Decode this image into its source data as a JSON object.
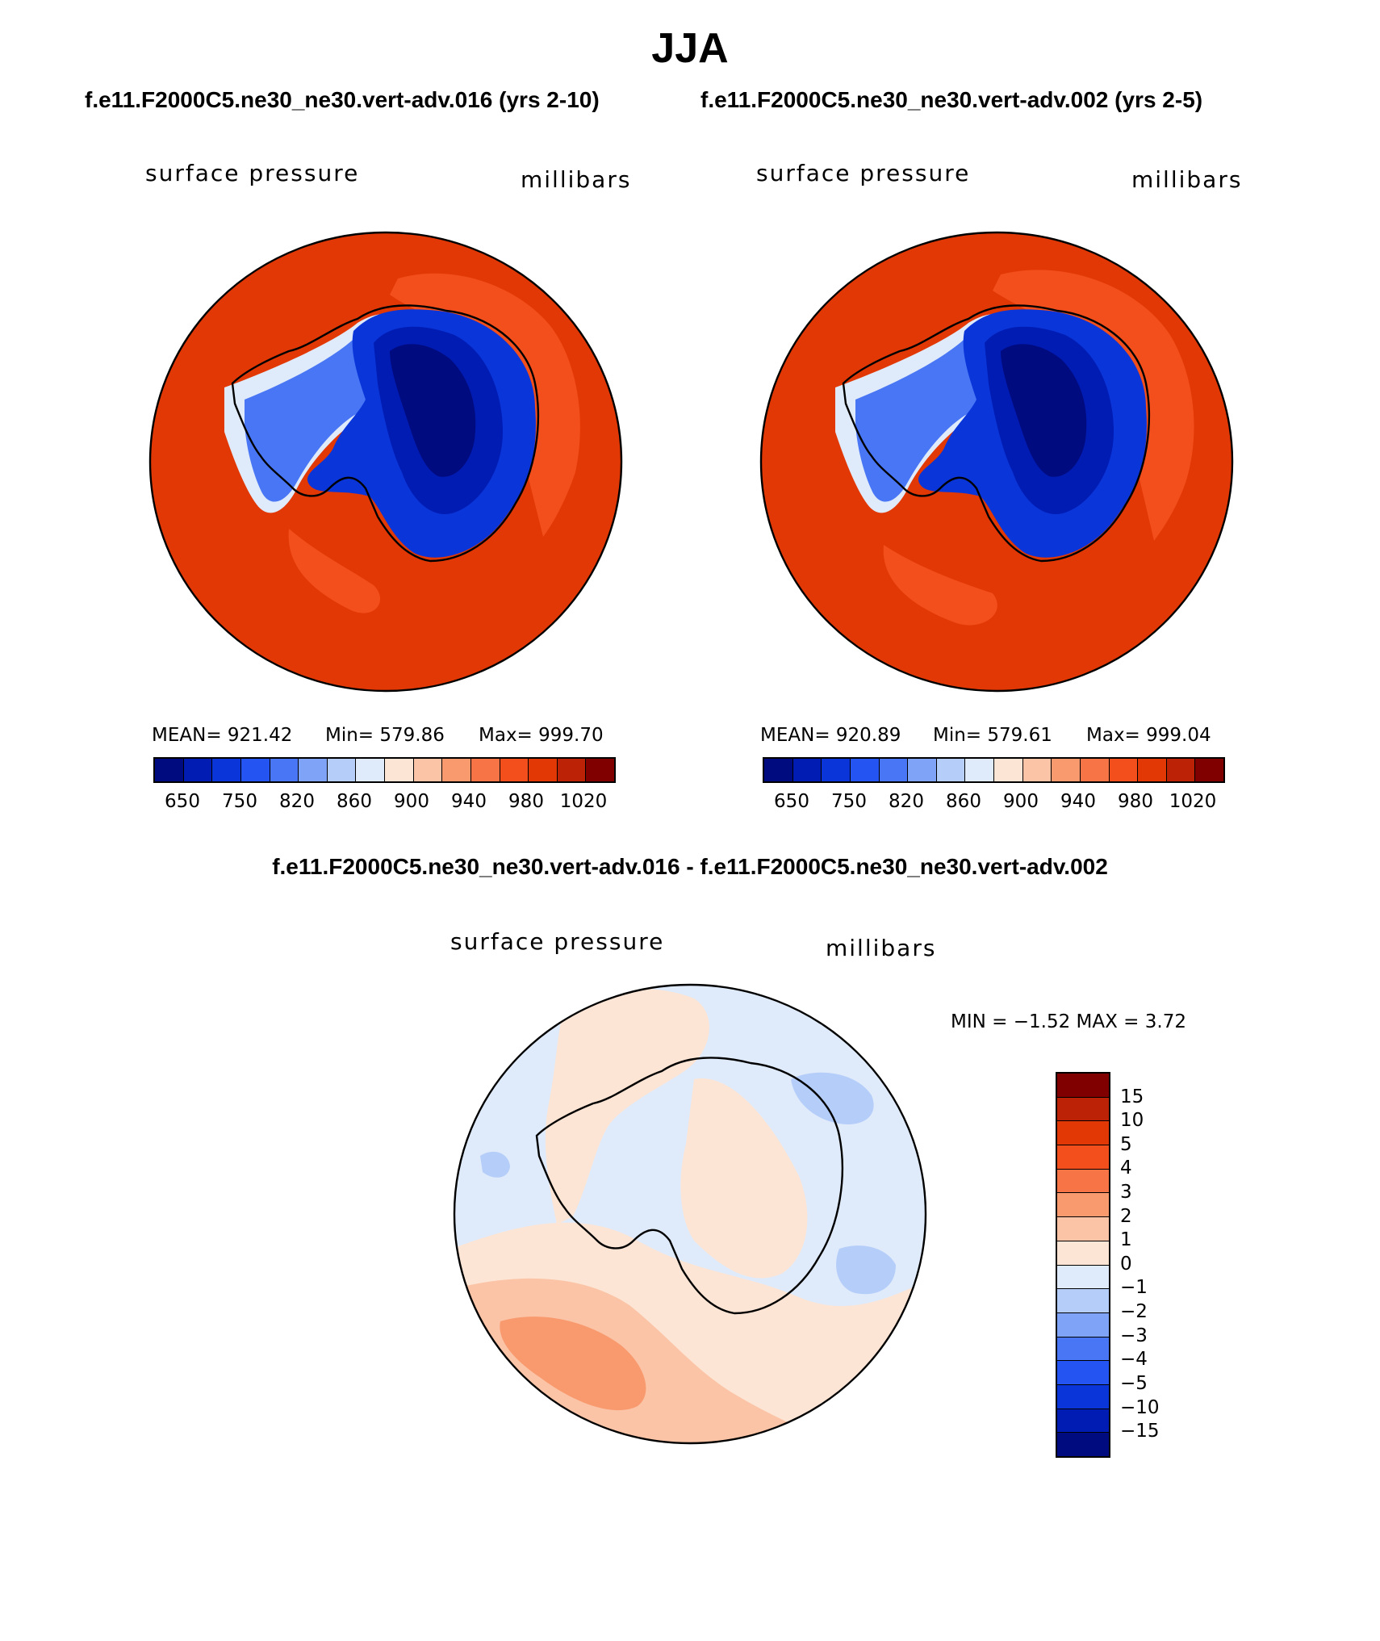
{
  "figure": {
    "title": "JJA",
    "case_left": "f.e11.F2000C5.ne30_ne30.vert-adv.016 (yrs 2-10)",
    "case_right": "f.e11.F2000C5.ne30_ne30.vert-adv.002 (yrs 2-5)",
    "diff_title": "f.e11.F2000C5.ne30_ne30.vert-adv.016 - f.e11.F2000C5.ne30_ne30.vert-adv.002"
  },
  "colors": {
    "abs_levels": [
      "#000b80",
      "#001cb3",
      "#0a35d9",
      "#2455f2",
      "#4876f5",
      "#7ea3f7",
      "#b5cdf9",
      "#dfebfb",
      "#fde5d5",
      "#fbc4a6",
      "#f9996e",
      "#f77447",
      "#f24f1c",
      "#e23805",
      "#bb2206",
      "#800000"
    ],
    "diff_levels": [
      "#000b80",
      "#001cb3",
      "#0a35d9",
      "#2455f2",
      "#4876f5",
      "#7ea3f7",
      "#b5cdf9",
      "#dfebfb",
      "#fde5d5",
      "#fbc4a6",
      "#f9996e",
      "#f77447",
      "#f24f1c",
      "#e23805",
      "#bb2206",
      "#800000"
    ]
  },
  "chart_data": [
    {
      "type": "map",
      "projection": "south polar stereographic",
      "title": "f.e11.F2000C5.ne30_ne30.vert-adv.016 (yrs 2-10)",
      "variable": "surface pressure",
      "units": "millibars",
      "mean_label": "MEAN=  921.42",
      "min_label": "Min=  579.86",
      "max_label": "Max=  999.70",
      "stats": {
        "mean": 921.42,
        "min": 579.86,
        "max": 999.7
      },
      "colorbar_ticks": [
        "650",
        "750",
        "820",
        "860",
        "900",
        "940",
        "980",
        "1020"
      ]
    },
    {
      "type": "map",
      "projection": "south polar stereographic",
      "title": "f.e11.F2000C5.ne30_ne30.vert-adv.002 (yrs 2-5)",
      "variable": "surface pressure",
      "units": "millibars",
      "mean_label": "MEAN=  920.89",
      "min_label": "Min=  579.61",
      "max_label": "Max=  999.04",
      "stats": {
        "mean": 920.89,
        "min": 579.61,
        "max": 999.04
      },
      "colorbar_ticks": [
        "650",
        "750",
        "820",
        "860",
        "900",
        "940",
        "980",
        "1020"
      ]
    },
    {
      "type": "map",
      "projection": "south polar stereographic",
      "title": "f.e11.F2000C5.ne30_ne30.vert-adv.016 - f.e11.F2000C5.ne30_ne30.vert-adv.002",
      "variable": "surface pressure",
      "units": "millibars",
      "minmax_label": "MIN =   −1.52  MAX =     3.72",
      "stats": {
        "min": -1.52,
        "max": 3.72
      },
      "colorbar_ticks": [
        "15",
        "10",
        "5",
        "4",
        "3",
        "2",
        "1",
        "0",
        "−1",
        "−2",
        "−3",
        "−4",
        "−5",
        "−10",
        "−15"
      ]
    }
  ]
}
